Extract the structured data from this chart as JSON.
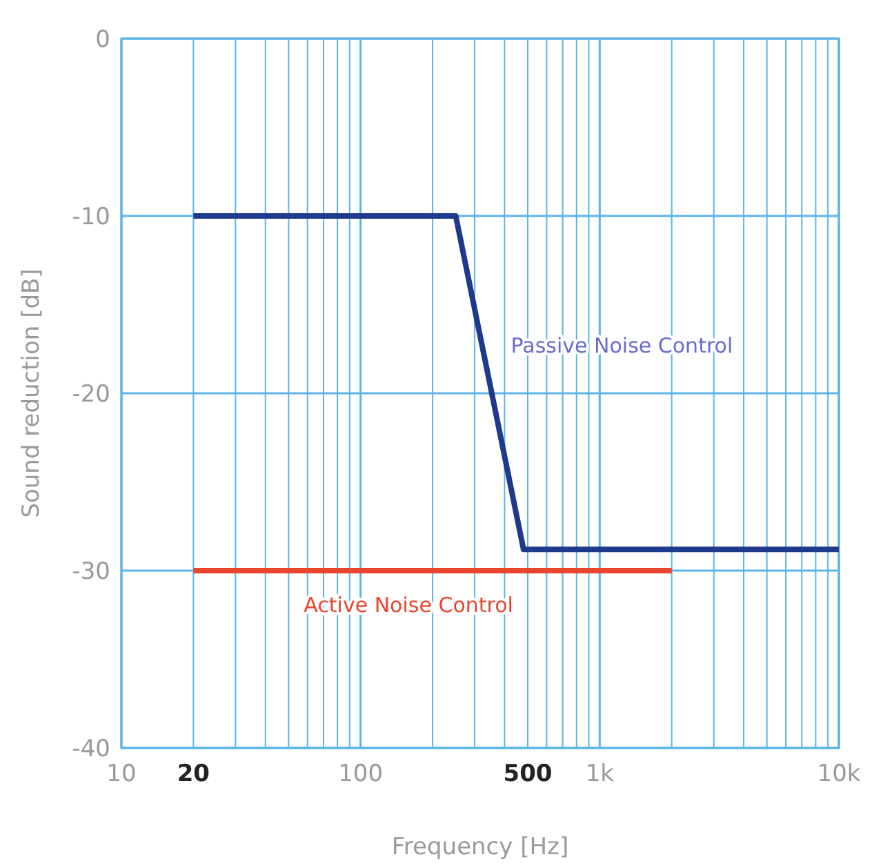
{
  "chart_data": {
    "type": "line",
    "xlabel": "Frequency [Hz]",
    "ylabel": "Sound reduction [dB]",
    "log": "x",
    "grid": true,
    "legend": false,
    "marker": "none",
    "line_style": "solid",
    "xlim": [
      10,
      10000
    ],
    "xticks": [
      10,
      {
        "value": 20,
        "label": "20"
      },
      {
        "value": 30,
        "label": null
      },
      {
        "value": 40,
        "label": null
      },
      {
        "value": 50,
        "label": null
      },
      {
        "value": 60,
        "label": null
      },
      {
        "value": 70,
        "label": null
      },
      {
        "value": 80,
        "label": null
      },
      {
        "value": 90,
        "label": null
      },
      100,
      {
        "value": 200,
        "label": null
      },
      {
        "value": 300,
        "label": null
      },
      {
        "value": 400,
        "label": null
      },
      {
        "value": 500,
        "label": "500"
      },
      {
        "value": 600,
        "label": null
      },
      {
        "value": 700,
        "label": null
      },
      {
        "value": 800,
        "label": null
      },
      {
        "value": 900,
        "label": null
      },
      {
        "value": 1000,
        "label": "1k"
      },
      {
        "value": 2000,
        "label": null
      },
      {
        "value": 3000,
        "label": null
      },
      {
        "value": 4000,
        "label": null
      },
      {
        "value": 5000,
        "label": null
      },
      {
        "value": 6000,
        "label": null
      },
      {
        "value": 7000,
        "label": null
      },
      {
        "value": 8000,
        "label": null
      },
      {
        "value": 9000,
        "label": null
      },
      {
        "value": 10000,
        "label": "10k"
      }
    ],
    "ylim": [
      -40,
      0
    ],
    "yticks": [
      -40,
      -30,
      -20,
      -10,
      0
    ],
    "series": [
      {
        "name": "Passive Noise Control",
        "color": "#1f3a8c",
        "x": [
          20,
          250,
          480,
          10000
        ],
        "values": [
          -10,
          -10,
          -28.8,
          -28.8
        ]
      },
      {
        "name": "Active Noise Control",
        "color": "#e8452c",
        "x": [
          20,
          2000
        ],
        "values": [
          -30,
          -30
        ]
      }
    ]
  }
}
